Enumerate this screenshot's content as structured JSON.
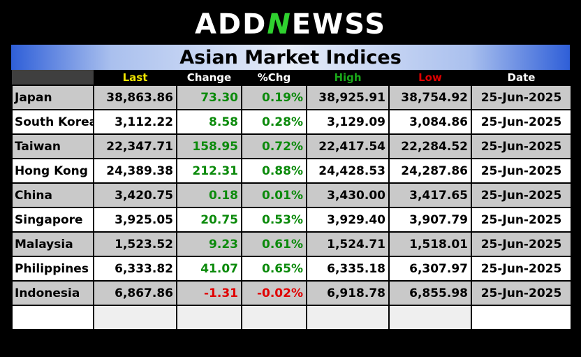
{
  "brand": {
    "logo_before": "ADD",
    "logo_n": "N",
    "logo_after": "EWSS"
  },
  "title": "Asian Market Indices",
  "columns": [
    {
      "label": "Last",
      "color": "#f2e600"
    },
    {
      "label": "Change",
      "color": "#ffffff"
    },
    {
      "label": "%Chg",
      "color": "#ffffff"
    },
    {
      "label": "High",
      "color": "#1aa81a"
    },
    {
      "label": "Low",
      "color": "#e00000"
    },
    {
      "label": "Date",
      "color": "#ffffff"
    }
  ],
  "rows": [
    {
      "market": "Japan",
      "last": "38,863.86",
      "change": "73.30",
      "pct": "0.19%",
      "high": "38,925.91",
      "low": "38,754.92",
      "date": "25-Jun-2025",
      "direction": "up"
    },
    {
      "market": "South Korea",
      "last": "3,112.22",
      "change": "8.58",
      "pct": "0.28%",
      "high": "3,129.09",
      "low": "3,084.86",
      "date": "25-Jun-2025",
      "direction": "up"
    },
    {
      "market": "Taiwan",
      "last": "22,347.71",
      "change": "158.95",
      "pct": "0.72%",
      "high": "22,417.54",
      "low": "22,284.52",
      "date": "25-Jun-2025",
      "direction": "up"
    },
    {
      "market": "Hong Kong",
      "last": "24,389.38",
      "change": "212.31",
      "pct": "0.88%",
      "high": "24,428.53",
      "low": "24,287.86",
      "date": "25-Jun-2025",
      "direction": "up"
    },
    {
      "market": "China",
      "last": "3,420.75",
      "change": "0.18",
      "pct": "0.01%",
      "high": "3,430.00",
      "low": "3,417.65",
      "date": "25-Jun-2025",
      "direction": "up"
    },
    {
      "market": "Singapore",
      "last": "3,925.05",
      "change": "20.75",
      "pct": "0.53%",
      "high": "3,929.40",
      "low": "3,907.79",
      "date": "25-Jun-2025",
      "direction": "up"
    },
    {
      "market": "Malaysia",
      "last": "1,523.52",
      "change": "9.23",
      "pct": "0.61%",
      "high": "1,524.71",
      "low": "1,518.01",
      "date": "25-Jun-2025",
      "direction": "up"
    },
    {
      "market": "Philippines",
      "last": "6,333.82",
      "change": "41.07",
      "pct": "0.65%",
      "high": "6,335.18",
      "low": "6,307.97",
      "date": "25-Jun-2025",
      "direction": "up"
    },
    {
      "market": "Indonesia",
      "last": "6,867.86",
      "change": "-1.31",
      "pct": "-0.02%",
      "high": "6,918.78",
      "low": "6,855.98",
      "date": "25-Jun-2025",
      "direction": "down"
    }
  ]
}
